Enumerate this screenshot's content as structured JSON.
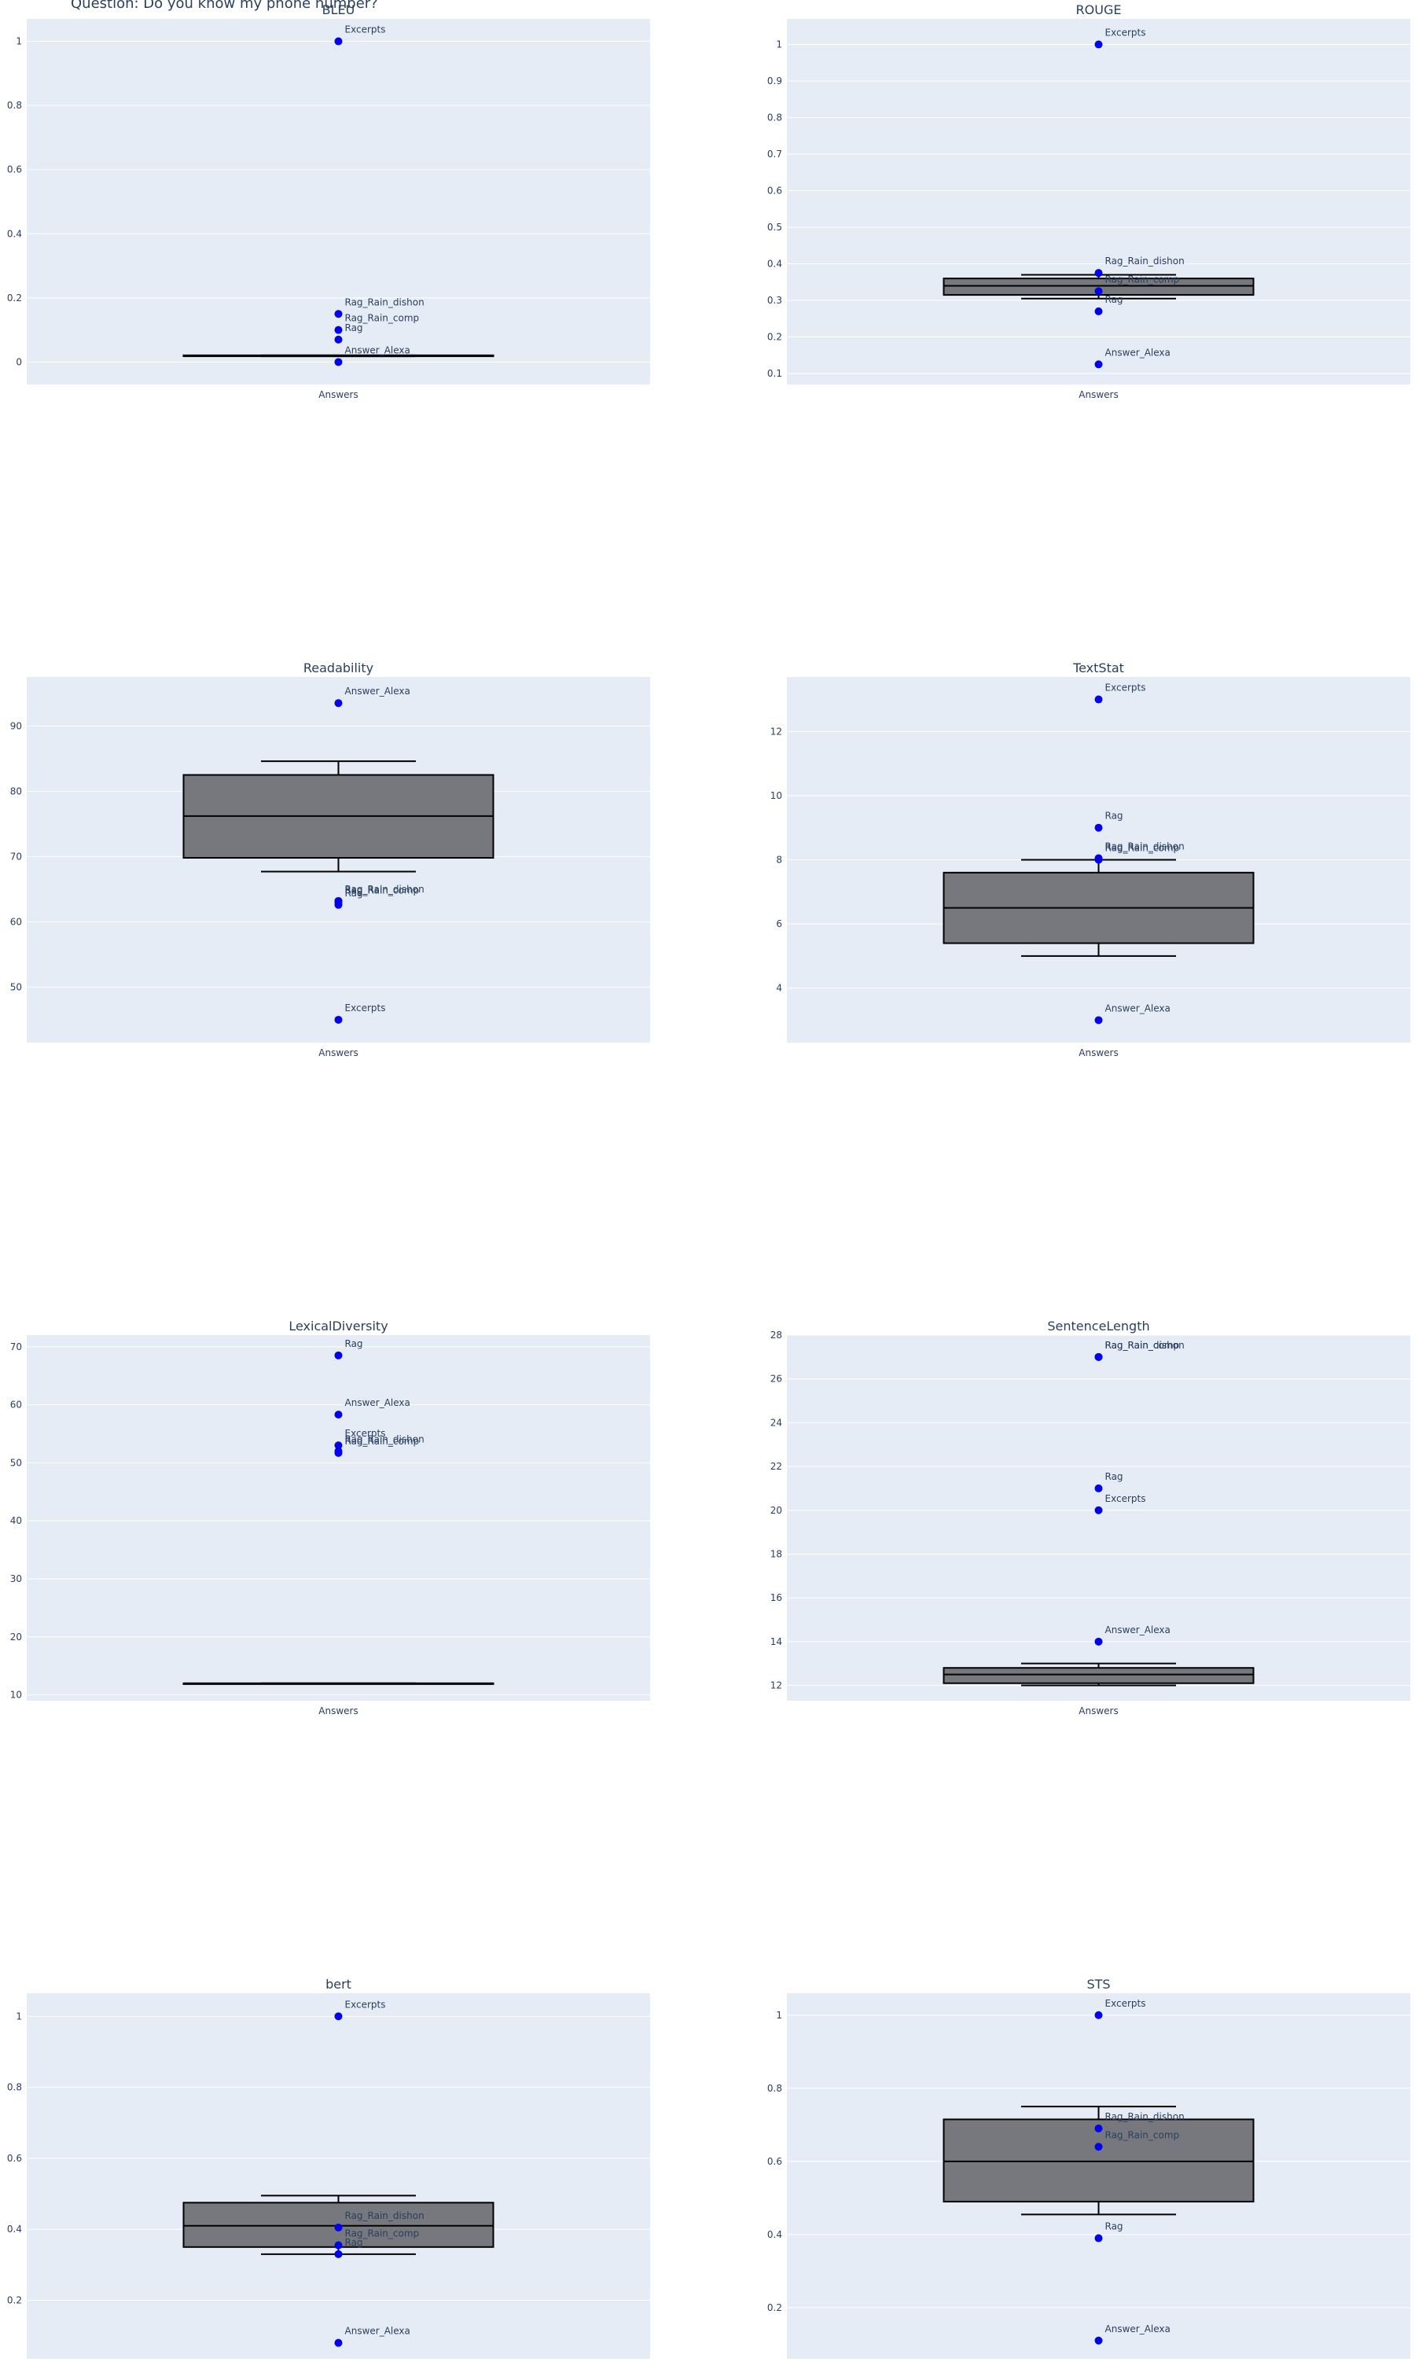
{
  "page": {
    "title": "Question: Do you know my phone number?"
  },
  "colors": {
    "plot_bg": "#E5ECF6",
    "grid": "#ffffff",
    "box_fill": "#76787D",
    "box_line": "#000000",
    "point": "#0000EE",
    "text": "#2a3f5f"
  },
  "chart_data": [
    {
      "type": "box",
      "title": "BLEU",
      "category": "Answers",
      "ylim": [
        -0.07,
        1.07
      ],
      "yticks": [
        0,
        0.2,
        0.4,
        0.6,
        0.8,
        1
      ],
      "ytick_labels": [
        "0",
        "0.2",
        "0.4",
        "0.6",
        "0.8",
        "1"
      ],
      "box": {
        "lowerfence": 0.018,
        "q1": 0.018,
        "median": 0.019,
        "q3": 0.021,
        "upperfence": 0.021
      },
      "points": [
        {
          "label": "Excerpts",
          "value": 1.0
        },
        {
          "label": "Rag_Rain_dishon",
          "value": 0.15
        },
        {
          "label": "Rag_Rain_comp",
          "value": 0.1
        },
        {
          "label": "Rag",
          "value": 0.07
        },
        {
          "label": "Answer_Alexa",
          "value": 0.0
        }
      ]
    },
    {
      "type": "box",
      "title": "ROUGE",
      "category": "Answers",
      "ylim": [
        0.07,
        1.07
      ],
      "yticks": [
        0.1,
        0.2,
        0.3,
        0.4,
        0.5,
        0.6,
        0.7,
        0.8,
        0.9,
        1
      ],
      "ytick_labels": [
        "0.1",
        "0.2",
        "0.3",
        "0.4",
        "0.5",
        "0.6",
        "0.7",
        "0.8",
        "0.9",
        "1"
      ],
      "box": {
        "lowerfence": 0.305,
        "q1": 0.315,
        "median": 0.34,
        "q3": 0.36,
        "upperfence": 0.37
      },
      "points": [
        {
          "label": "Excerpts",
          "value": 1.0
        },
        {
          "label": "Rag_Rain_dishon",
          "value": 0.375
        },
        {
          "label": "Rag_Rain_comp",
          "value": 0.325
        },
        {
          "label": "Rag",
          "value": 0.27
        },
        {
          "label": "Answer_Alexa",
          "value": 0.125
        }
      ]
    },
    {
      "type": "box",
      "title": "Readability",
      "category": "Answers",
      "ylim": [
        41.5,
        97.5
      ],
      "yticks": [
        50,
        60,
        70,
        80,
        90
      ],
      "ytick_labels": [
        "50",
        "60",
        "70",
        "80",
        "90"
      ],
      "box": {
        "lowerfence": 67.7,
        "q1": 69.8,
        "median": 76.2,
        "q3": 82.5,
        "upperfence": 84.6
      },
      "points": [
        {
          "label": "Answer_Alexa",
          "value": 93.5
        },
        {
          "label": "Rag_Rain_dishon",
          "value": 63.2
        },
        {
          "label": "Rag_Rain_comp",
          "value": 63.0
        },
        {
          "label": "Rag",
          "value": 62.6
        },
        {
          "label": "Excerpts",
          "value": 45.0
        }
      ]
    },
    {
      "type": "box",
      "title": "TextStat",
      "category": "Answers",
      "ylim": [
        2.3,
        13.7
      ],
      "yticks": [
        4,
        6,
        8,
        10,
        12
      ],
      "ytick_labels": [
        "4",
        "6",
        "8",
        "10",
        "12"
      ],
      "box": {
        "lowerfence": 5.0,
        "q1": 5.4,
        "median": 6.5,
        "q3": 7.6,
        "upperfence": 8.0
      },
      "points": [
        {
          "label": "Excerpts",
          "value": 13.0
        },
        {
          "label": "Rag",
          "value": 9.0
        },
        {
          "label": "Rag_Rain_dishon",
          "value": 8.05
        },
        {
          "label": "Rag_Rain_comp",
          "value": 8.0
        },
        {
          "label": "Answer_Alexa",
          "value": 3.0
        }
      ]
    },
    {
      "type": "box",
      "title": "LexicalDiversity",
      "category": "Answers",
      "ylim": [
        9.0,
        72.0
      ],
      "yticks": [
        10,
        20,
        30,
        40,
        50,
        60,
        70
      ],
      "ytick_labels": [
        "10",
        "20",
        "30",
        "40",
        "50",
        "60",
        "70"
      ],
      "box": {
        "lowerfence": 12.0,
        "q1": 12.0,
        "median": 12.0,
        "q3": 12.0,
        "upperfence": 12.0
      },
      "points": [
        {
          "label": "Rag",
          "value": 68.5
        },
        {
          "label": "Answer_Alexa",
          "value": 58.3
        },
        {
          "label": "Excerpts",
          "value": 53.0
        },
        {
          "label": "Rag_Rain_dishon",
          "value": 52.0
        },
        {
          "label": "Rag_Rain_comp",
          "value": 51.7
        }
      ]
    },
    {
      "type": "box",
      "title": "SentenceLength",
      "category": "Answers",
      "ylim": [
        11.3,
        28.0
      ],
      "yticks": [
        12,
        14,
        16,
        18,
        20,
        22,
        24,
        26,
        28
      ],
      "ytick_labels": [
        "12",
        "14",
        "16",
        "18",
        "20",
        "22",
        "24",
        "26",
        "28"
      ],
      "box": {
        "lowerfence": 12.0,
        "q1": 12.1,
        "median": 12.5,
        "q3": 12.8,
        "upperfence": 13.0
      },
      "points": [
        {
          "label": "Rag_Rain_dishon",
          "value": 27.0
        },
        {
          "label": "Rag_Rain_comp",
          "value": 27.0
        },
        {
          "label": "Rag",
          "value": 21.0
        },
        {
          "label": "Excerpts",
          "value": 20.0
        },
        {
          "label": "Answer_Alexa",
          "value": 14.0
        }
      ]
    },
    {
      "type": "box",
      "title": "bert",
      "category": "Answers",
      "ylim": [
        0.035,
        1.065
      ],
      "yticks": [
        0.2,
        0.4,
        0.6,
        0.8,
        1
      ],
      "ytick_labels": [
        "0.2",
        "0.4",
        "0.6",
        "0.8",
        "1"
      ],
      "box": {
        "lowerfence": 0.33,
        "q1": 0.35,
        "median": 0.41,
        "q3": 0.475,
        "upperfence": 0.495
      },
      "points": [
        {
          "label": "Excerpts",
          "value": 1.0
        },
        {
          "label": "Rag_Rain_dishon",
          "value": 0.405
        },
        {
          "label": "Rag_Rain_comp",
          "value": 0.355
        },
        {
          "label": "Rag",
          "value": 0.33
        },
        {
          "label": "Answer_Alexa",
          "value": 0.08
        }
      ]
    },
    {
      "type": "box",
      "title": "STS",
      "category": "Answers",
      "ylim": [
        0.06,
        1.06
      ],
      "yticks": [
        0.2,
        0.4,
        0.6,
        0.8,
        1
      ],
      "ytick_labels": [
        "0.2",
        "0.4",
        "0.6",
        "0.8",
        "1"
      ],
      "box": {
        "lowerfence": 0.455,
        "q1": 0.49,
        "median": 0.6,
        "q3": 0.715,
        "upperfence": 0.75
      },
      "points": [
        {
          "label": "Excerpts",
          "value": 1.0
        },
        {
          "label": "Rag_Rain_dishon",
          "value": 0.69
        },
        {
          "label": "Rag_Rain_comp",
          "value": 0.64
        },
        {
          "label": "Rag",
          "value": 0.39
        },
        {
          "label": "Answer_Alexa",
          "value": 0.11
        }
      ]
    }
  ]
}
